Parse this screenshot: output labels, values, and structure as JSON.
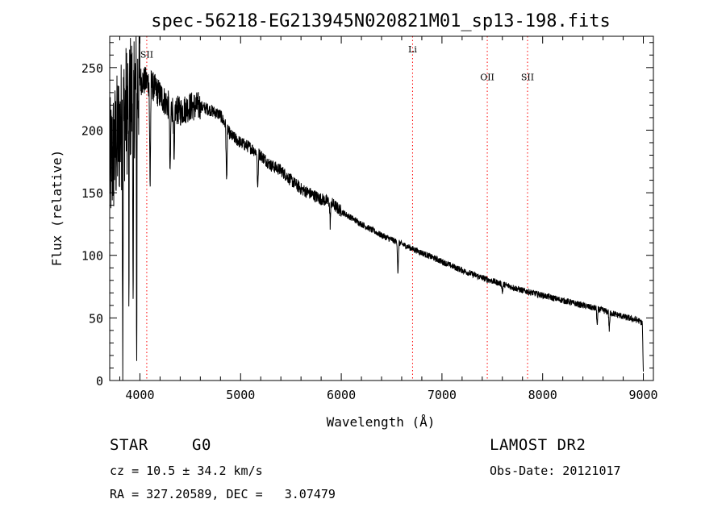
{
  "chart_data": {
    "type": "line",
    "title": "spec-56218-EG213945N020821M01_sp13-198.fits",
    "xlabel": "Wavelength (Å)",
    "ylabel": "Flux (relative)",
    "xlim": [
      3700,
      9100
    ],
    "ylim": [
      0,
      275
    ],
    "x_ticks": [
      4000,
      5000,
      6000,
      7000,
      8000,
      9000
    ],
    "y_ticks": [
      0,
      50,
      100,
      150,
      200,
      250
    ],
    "grid": false,
    "line_color": "#000000",
    "continuum": {
      "x": [
        3700,
        3800,
        3900,
        4000,
        4100,
        4200,
        4300,
        4400,
        4500,
        4600,
        4700,
        4800,
        4900,
        5000,
        5100,
        5200,
        5300,
        5400,
        5500,
        5600,
        5700,
        5800,
        5900,
        6000,
        6200,
        6400,
        6600,
        6800,
        7000,
        7200,
        7400,
        7600,
        7800,
        8000,
        8200,
        8400,
        8600,
        8800,
        8950,
        8990,
        9000
      ],
      "y": [
        170,
        200,
        225,
        240,
        238,
        228,
        218,
        215,
        219,
        219,
        216,
        212,
        196,
        190,
        186,
        180,
        172,
        168,
        160,
        153,
        149,
        145,
        142,
        135,
        125,
        116,
        109,
        102,
        95,
        88,
        82,
        77,
        72,
        68,
        64,
        60,
        56,
        51,
        48,
        46,
        5
      ]
    },
    "absorption_features": [
      {
        "x": 3830,
        "y": 20
      },
      {
        "x": 3890,
        "y": 60
      },
      {
        "x": 3933,
        "y": 5
      },
      {
        "x": 3968,
        "y": 8
      },
      {
        "x": 4101,
        "y": 150
      },
      {
        "x": 4300,
        "y": 158
      },
      {
        "x": 4340,
        "y": 165
      },
      {
        "x": 4861,
        "y": 156
      },
      {
        "x": 5170,
        "y": 150
      },
      {
        "x": 5890,
        "y": 125
      },
      {
        "x": 6563,
        "y": 84
      },
      {
        "x": 7600,
        "y": 70
      },
      {
        "x": 8542,
        "y": 43
      },
      {
        "x": 8662,
        "y": 40
      }
    ],
    "line_markers": [
      {
        "label": "SII",
        "x": 4068,
        "label_y": 258,
        "color": "#ff0000"
      },
      {
        "label": "Li",
        "x": 6708,
        "label_y": 262,
        "color": "#ff0000"
      },
      {
        "label": "OII",
        "x": 7450,
        "label_y": 240,
        "color": "#ff0000"
      },
      {
        "label": "SII",
        "x": 7850,
        "label_y": 240,
        "color": "#ff0000"
      }
    ]
  },
  "info": {
    "class": "STAR",
    "subclass": "G0",
    "survey": "LAMOST DR2",
    "redshift": "cz = 10.5 ± 34.2 km/s",
    "obs_date": "Obs-Date: 20121017",
    "coordinates": "RA = 327.20589, DEC =   3.07479"
  }
}
